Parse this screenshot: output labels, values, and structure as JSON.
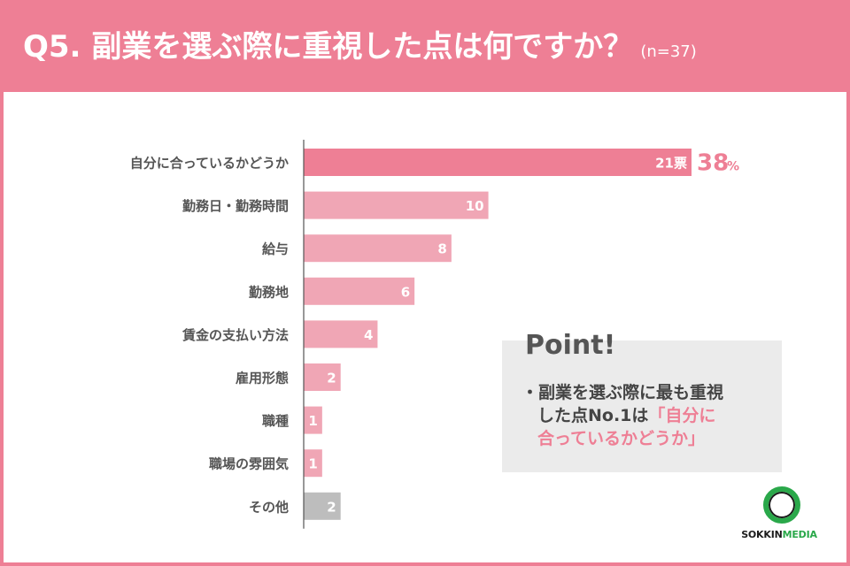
{
  "header": {
    "title": "Q5. 副業を選ぶ際に重視した点は何ですか？",
    "sample": "(n=37)"
  },
  "colors": {
    "header_bg": "#ee7f95",
    "highlight_bar": "#ee7f95",
    "bar": "#f0a6b5",
    "other_bar": "#bdbdbd",
    "accent_text": "#ee7f95"
  },
  "chart_data": {
    "type": "bar",
    "orientation": "horizontal",
    "categories": [
      "自分に合っているかどうか",
      "勤務日・勤務時間",
      "給与",
      "勤務地",
      "賃金の支払い方法",
      "雇用形態",
      "職種",
      "職場の雰囲気",
      "その他"
    ],
    "values": [
      21,
      10,
      8,
      6,
      4,
      2,
      1,
      1,
      2
    ],
    "value_labels": [
      "21票",
      "10",
      "8",
      "6",
      "4",
      "2",
      "1",
      "1",
      "2"
    ],
    "highlight_index": 0,
    "highlight_percent": "38",
    "highlight_percent_unit": "%",
    "other_index": 8,
    "xlim": [
      0,
      21
    ]
  },
  "point": {
    "heading": "Point!",
    "line1": "・副業を選ぶ際に最も重視",
    "line2_plain": "した点No.1は",
    "line2_accent": "「自分に",
    "line3_accent": "合っているかどうか」"
  },
  "logo": {
    "part1": "SOKKIN",
    "part2": "MEDIA"
  }
}
